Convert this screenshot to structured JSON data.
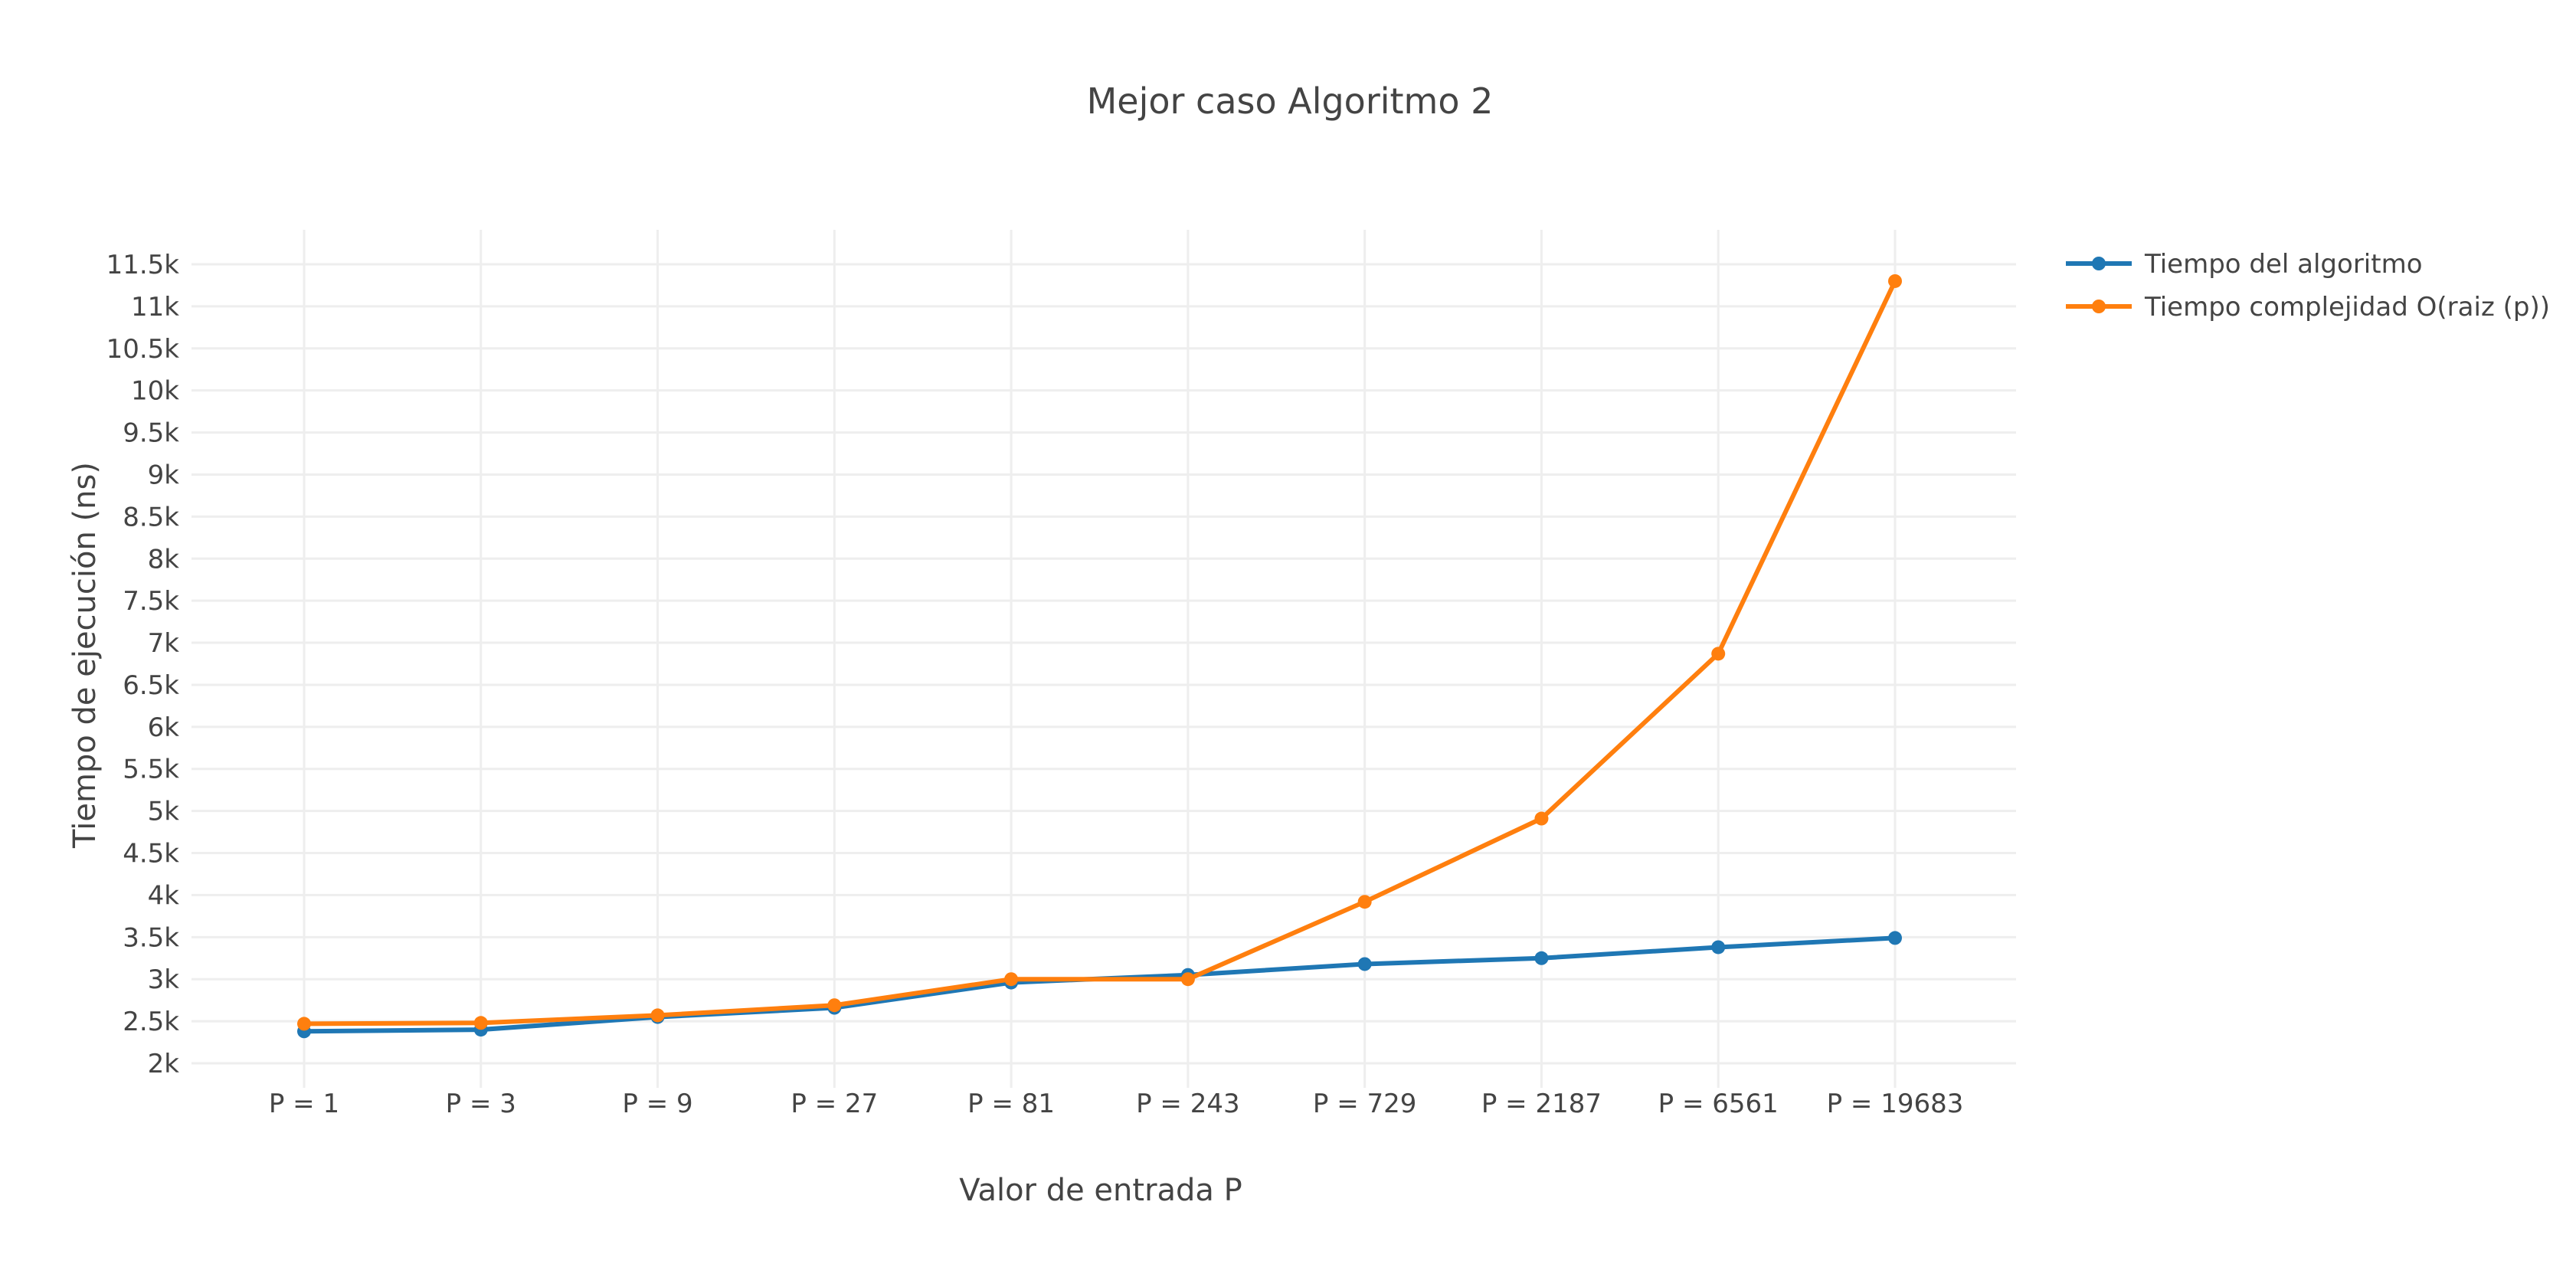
{
  "chart_data": {
    "type": "line",
    "title": "Mejor caso Algoritmo 2",
    "xlabel": "Valor de entrada P",
    "ylabel": "Tiempo de ejecución (ns)",
    "categories": [
      "P = 1",
      "P = 3",
      "P = 9",
      "P = 27",
      "P = 81",
      "P = 243",
      "P = 729",
      "P = 2187",
      "P = 6561",
      "P = 19683"
    ],
    "ylim": [
      1850,
      11800
    ],
    "yticks": [
      2000,
      2500,
      3000,
      3500,
      4000,
      4500,
      5000,
      5500,
      6000,
      6500,
      7000,
      7500,
      8000,
      8500,
      9000,
      9500,
      10000,
      10500,
      11000,
      11500
    ],
    "ytick_labels": [
      "2k",
      "2.5k",
      "3k",
      "3.5k",
      "4k",
      "4.5k",
      "5k",
      "5.5k",
      "6k",
      "6.5k",
      "7k",
      "7.5k",
      "8k",
      "8.5k",
      "9k",
      "9.5k",
      "10k",
      "10.5k",
      "11k",
      "11.5k"
    ],
    "grid": true,
    "legend_position": "top-right",
    "series": [
      {
        "name": "Tiempo del algoritmo",
        "color": "#1f77b4",
        "values": [
          2380,
          2400,
          2550,
          2660,
          2960,
          3050,
          3180,
          3250,
          3380,
          3490
        ]
      },
      {
        "name": "Tiempo complejidad O(raiz (p))",
        "color": "#ff7f0e",
        "values": [
          2470,
          2480,
          2570,
          2690,
          3000,
          3000,
          3920,
          4910,
          6870,
          11300
        ]
      }
    ]
  }
}
